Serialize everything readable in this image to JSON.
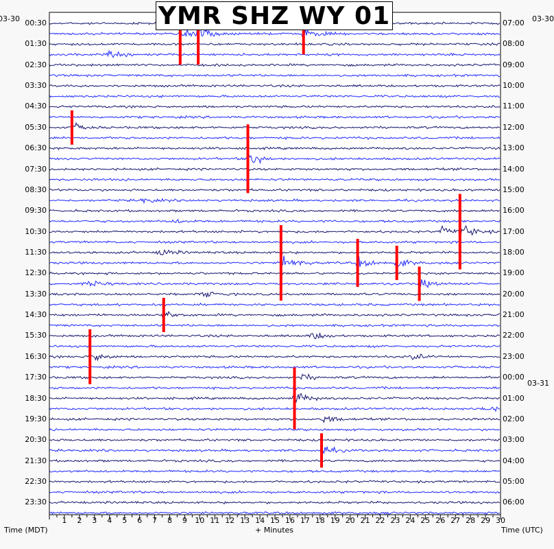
{
  "title": "YMR SHZ WY 01",
  "left_date": "03-30",
  "right_date_start": "03-30",
  "right_date_change": "03-31",
  "xlabel": "+ Minutes",
  "left_axis_label": "Time (MDT)",
  "right_axis_label": "Time (UTC)",
  "colors": {
    "trace_a": "#14146e",
    "trace_b": "#1e28ff",
    "clip": "#ff0000",
    "frame": "#000000"
  },
  "chart_data": {
    "type": "line",
    "title": "YMR SHZ WY 01",
    "xlabel": "+ Minutes",
    "xlim": [
      0,
      30
    ],
    "x_ticks": [
      1,
      2,
      3,
      4,
      5,
      6,
      7,
      8,
      9,
      10,
      11,
      12,
      13,
      14,
      15,
      16,
      17,
      18,
      19,
      20,
      21,
      22,
      23,
      24,
      25,
      26,
      27,
      28,
      29,
      30
    ],
    "grid": false,
    "row_minutes": 30,
    "rows": 48,
    "left_ticks": [
      "00:30",
      "01:30",
      "02:30",
      "03:30",
      "04:30",
      "05:30",
      "06:30",
      "07:30",
      "08:30",
      "09:30",
      "10:30",
      "11:30",
      "12:30",
      "13:30",
      "14:30",
      "15:30",
      "16:30",
      "17:30",
      "18:30",
      "19:30",
      "20:30",
      "21:30",
      "22:30",
      "23:30"
    ],
    "right_ticks": [
      "07:00",
      "08:00",
      "09:00",
      "10:00",
      "11:00",
      "12:00",
      "13:00",
      "14:00",
      "15:00",
      "16:00",
      "17:00",
      "18:00",
      "19:00",
      "20:00",
      "21:00",
      "22:00",
      "23:00",
      "00:00",
      "01:00",
      "02:00",
      "03:00",
      "04:00",
      "05:00",
      "06:00"
    ],
    "events": [
      {
        "row": 1,
        "minute": 8.7,
        "amp": 9,
        "clipped": true
      },
      {
        "row": 1,
        "minute": 9.9,
        "amp": 9,
        "clipped": true
      },
      {
        "row": 1,
        "minute": 16.9,
        "amp": 6,
        "clipped": true
      },
      {
        "row": 3,
        "minute": 3.9,
        "amp": 5,
        "clipped": false
      },
      {
        "row": 10,
        "minute": 1.5,
        "amp": 5,
        "clipped": true
      },
      {
        "row": 13,
        "minute": 13.2,
        "amp": 10,
        "clipped": true
      },
      {
        "row": 17,
        "minute": 6.2,
        "amp": 3,
        "clipped": false
      },
      {
        "row": 19,
        "minute": 8.3,
        "amp": 2,
        "clipped": false
      },
      {
        "row": 20,
        "minute": 26.0,
        "amp": 5,
        "clipped": false
      },
      {
        "row": 20,
        "minute": 27.3,
        "amp": 11,
        "clipped": true
      },
      {
        "row": 22,
        "minute": 7.3,
        "amp": 5,
        "clipped": false
      },
      {
        "row": 23,
        "minute": 15.4,
        "amp": 11,
        "clipped": true
      },
      {
        "row": 23,
        "minute": 20.5,
        "amp": 7,
        "clipped": true
      },
      {
        "row": 23,
        "minute": 23.1,
        "amp": 5,
        "clipped": true
      },
      {
        "row": 25,
        "minute": 2.6,
        "amp": 4,
        "clipped": false
      },
      {
        "row": 25,
        "minute": 24.6,
        "amp": 5,
        "clipped": true
      },
      {
        "row": 26,
        "minute": 10.2,
        "amp": 4,
        "clipped": false
      },
      {
        "row": 28,
        "minute": 7.6,
        "amp": 5,
        "clipped": true
      },
      {
        "row": 28,
        "minute": 30.0,
        "amp": 3,
        "clipped": false
      },
      {
        "row": 30,
        "minute": 17.4,
        "amp": 5,
        "clipped": false
      },
      {
        "row": 32,
        "minute": 2.7,
        "amp": 8,
        "clipped": true
      },
      {
        "row": 32,
        "minute": 24.0,
        "amp": 4,
        "clipped": false
      },
      {
        "row": 34,
        "minute": 16.8,
        "amp": 4,
        "clipped": false
      },
      {
        "row": 36,
        "minute": 16.3,
        "amp": 9,
        "clipped": true
      },
      {
        "row": 37,
        "minute": 28.8,
        "amp": 4,
        "clipped": false
      },
      {
        "row": 38,
        "minute": 18.2,
        "amp": 5,
        "clipped": false
      },
      {
        "row": 41,
        "minute": 18.1,
        "amp": 5,
        "clipped": true
      }
    ]
  }
}
